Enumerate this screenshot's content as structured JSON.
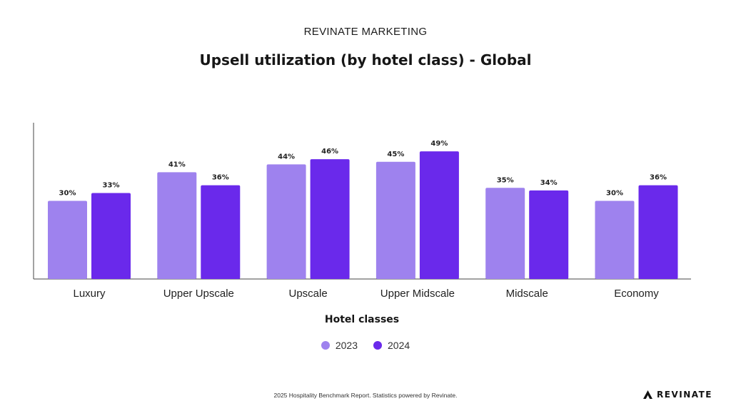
{
  "header": {
    "supertitle": "REVINATE MARKETING",
    "title": "Upsell utilization (by hotel class) - Global"
  },
  "colors": {
    "series_2023": "#9e82ee",
    "series_2024": "#6a29eb",
    "axis": "#444444"
  },
  "chart_data": {
    "type": "bar",
    "title": "Upsell utilization (by hotel class) - Global",
    "xlabel": "Hotel classes",
    "ylabel": "",
    "categories": [
      "Luxury",
      "Upper Upscale",
      "Upscale",
      "Upper Midscale",
      "Midscale",
      "Economy"
    ],
    "series": [
      {
        "name": "2023",
        "values": [
          30,
          41,
          44,
          45,
          35,
          30
        ],
        "labels": [
          "30%",
          "41%",
          "44%",
          "45%",
          "35%",
          "30%"
        ]
      },
      {
        "name": "2024",
        "values": [
          33,
          36,
          46,
          49,
          34,
          36
        ],
        "labels": [
          "33%",
          "36%",
          "46%",
          "49%",
          "34%",
          "36%"
        ]
      }
    ],
    "ylim": [
      0,
      60
    ],
    "grid": false,
    "legend_position": "bottom-center"
  },
  "legend": {
    "items": [
      {
        "label": "2023",
        "color": "#9e82ee"
      },
      {
        "label": "2024",
        "color": "#6a29eb"
      }
    ]
  },
  "footer": {
    "text": "2025 Hospitality Benchmark Report. Statistics powered by Revinate."
  },
  "logo": {
    "text": "REVINATE",
    "icon": "revinate-logo-icon"
  }
}
